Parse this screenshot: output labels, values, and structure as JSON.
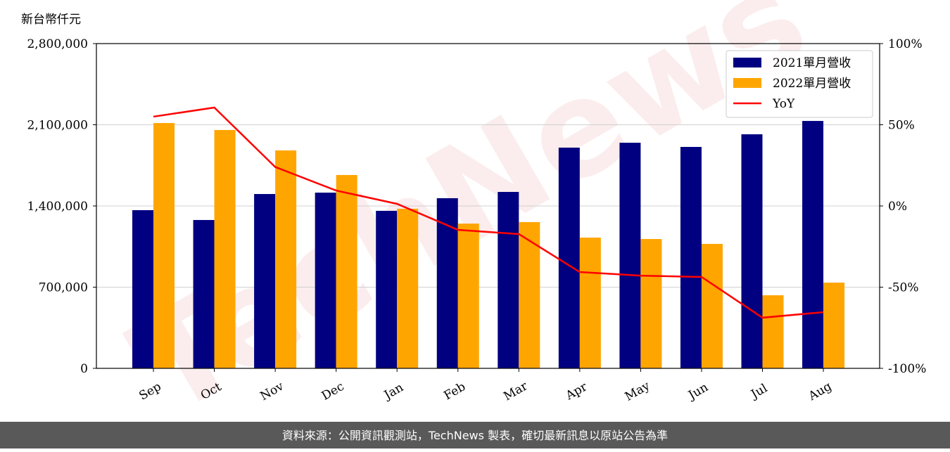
{
  "chart_data": {
    "type": "bar",
    "y_label": "新台幣仟元",
    "watermark": "TechNews",
    "source": "資料來源：公開資訊觀測站，TechNews 製表，確切最新訊息以原站公告為準",
    "categories": [
      "Sep",
      "Oct",
      "Nov",
      "Dec",
      "Jan",
      "Feb",
      "Mar",
      "Apr",
      "May",
      "Jun",
      "Jul",
      "Aug"
    ],
    "series": [
      {
        "name": "2021單月營收",
        "color": "#000080",
        "values": [
          1364000,
          1279000,
          1503000,
          1515000,
          1358000,
          1467000,
          1521000,
          1903000,
          1945000,
          1909000,
          2018000,
          2133000
        ]
      },
      {
        "name": "2022單月營收",
        "color": "#ffa500",
        "values": [
          2115000,
          2055000,
          1879000,
          1667000,
          1376000,
          1248000,
          1261000,
          1127000,
          1115000,
          1073000,
          630000,
          739000
        ]
      },
      {
        "name": "YoY",
        "color": "#ff0000",
        "type": "line",
        "axis": "y2",
        "values": [
          55,
          60.6,
          24,
          9.5,
          1.3,
          -14.7,
          -17.3,
          -40.7,
          -42.9,
          -43.7,
          -68.8,
          -65.4
        ]
      }
    ],
    "ylim": [
      0,
      2800000
    ],
    "yticks": [
      0,
      {
        "value": 700000,
        "label": "700,000"
      },
      {
        "value": 1400000,
        "label": "1,400,000"
      },
      {
        "value": 2100000,
        "label": "2,100,000"
      },
      {
        "value": 2800000,
        "label": "2,800,000"
      }
    ],
    "y2lim": [
      -100,
      100
    ],
    "y2ticks": [
      {
        "value": -100,
        "label": "-100%"
      },
      {
        "value": -50,
        "label": "-50%"
      },
      {
        "value": 0,
        "label": "0%"
      },
      {
        "value": 50,
        "label": "50%"
      },
      {
        "value": 100,
        "label": "100%"
      }
    ],
    "grid": true,
    "legend": "upper right"
  }
}
